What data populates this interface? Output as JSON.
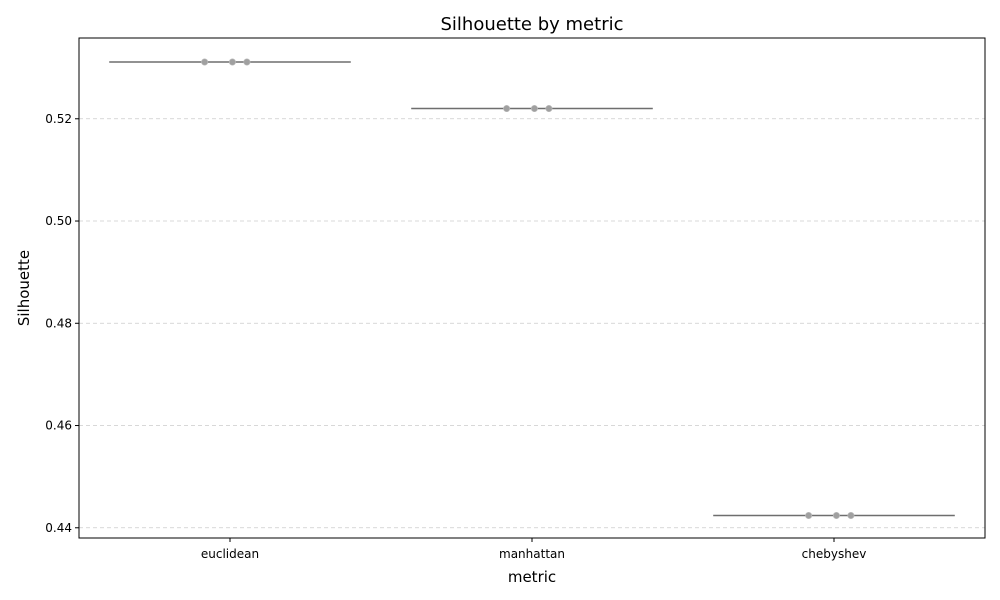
{
  "chart_data": {
    "type": "scatter",
    "title": "Silhouette by metric",
    "xlabel": "metric",
    "ylabel": "Silhouette",
    "categories": [
      "euclidean",
      "manhattan",
      "chebyshev"
    ],
    "ylim": [
      0.438,
      0.5358
    ],
    "yticks": [
      0.44,
      0.46,
      0.48,
      0.5,
      0.52
    ],
    "ytick_labels": [
      "0.44",
      "0.46",
      "0.48",
      "0.50",
      "0.52"
    ],
    "grid": true,
    "groups": [
      {
        "category": "euclidean",
        "median": 0.5311,
        "points": [
          0.5311,
          0.5311,
          0.5311
        ]
      },
      {
        "category": "manhattan",
        "median": 0.522,
        "points": [
          0.522,
          0.522,
          0.522
        ]
      },
      {
        "category": "chebyshev",
        "median": 0.4424,
        "points": [
          0.4424,
          0.4424,
          0.4424
        ]
      }
    ],
    "colors": {
      "points": "#a0a0a0",
      "median": "#6e6e6e",
      "grid": "#cccccc"
    }
  }
}
